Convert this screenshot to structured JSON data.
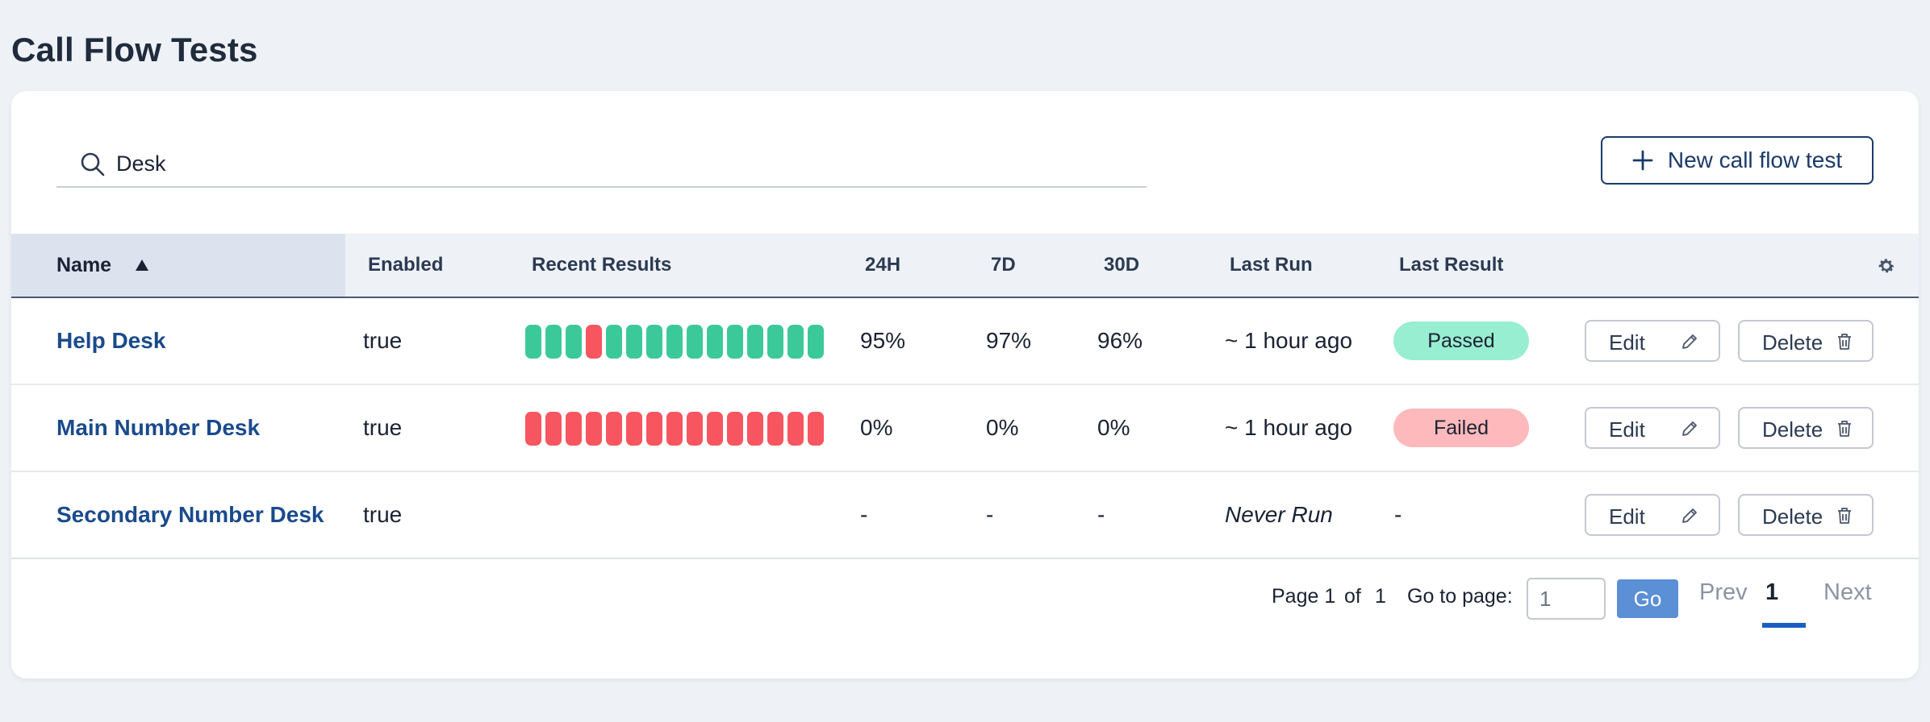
{
  "page": {
    "title": "Call Flow Tests"
  },
  "toolbar": {
    "search_value": "Desk",
    "new_button_label": "New call flow test"
  },
  "table": {
    "columns": {
      "name": "Name",
      "enabled": "Enabled",
      "recent": "Recent Results",
      "h24": "24H",
      "d7": "7D",
      "d30": "30D",
      "last_run": "Last Run",
      "last_result": "Last Result"
    },
    "sort_column": "Name",
    "sort_direction": "ascending",
    "colors": {
      "pass": "#3cc99a",
      "fail": "#f7555f",
      "passed_badge": "#98eed0",
      "failed_badge": "#fdb9bb"
    },
    "edit_label": "Edit",
    "delete_label": "Delete",
    "rows": [
      {
        "name": "Help Desk",
        "enabled": "true",
        "results": [
          "pass",
          "pass",
          "pass",
          "fail",
          "pass",
          "pass",
          "pass",
          "pass",
          "pass",
          "pass",
          "pass",
          "pass",
          "pass",
          "pass",
          "pass"
        ],
        "h24": "95%",
        "d7": "97%",
        "d30": "96%",
        "last_run": "~ 1 hour ago",
        "last_result": "Passed"
      },
      {
        "name": "Main Number Desk",
        "enabled": "true",
        "results": [
          "fail",
          "fail",
          "fail",
          "fail",
          "fail",
          "fail",
          "fail",
          "fail",
          "fail",
          "fail",
          "fail",
          "fail",
          "fail",
          "fail",
          "fail"
        ],
        "h24": "0%",
        "d7": "0%",
        "d30": "0%",
        "last_run": "~ 1 hour ago",
        "last_result": "Failed"
      },
      {
        "name": "Secondary Number Desk",
        "enabled": "true",
        "results": [],
        "h24": "-",
        "d7": "-",
        "d30": "-",
        "last_run": "Never Run",
        "last_result": "-"
      }
    ]
  },
  "pagination": {
    "page_label": "Page 1",
    "of_label": "of",
    "total_pages": "1",
    "goto_label": "Go to page:",
    "goto_value": "1",
    "go_label": "Go",
    "prev_label": "Prev",
    "current_page": "1",
    "next_label": "Next"
  }
}
